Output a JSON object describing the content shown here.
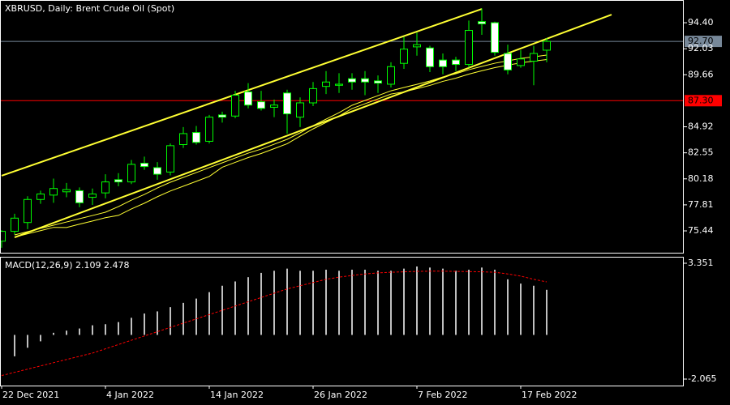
{
  "chart_data": [
    {
      "type": "candlestick",
      "title": "XBRUSD, Daily:  Brent Crude Oil (Spot)",
      "categories": [
        "22 Dec 2021",
        null,
        null,
        null,
        null,
        null,
        null,
        null,
        "4 Jan 2022",
        null,
        null,
        null,
        null,
        null,
        null,
        null,
        "14 Jan 2022",
        null,
        null,
        null,
        null,
        null,
        null,
        null,
        "26 Jan 2022",
        null,
        null,
        null,
        null,
        null,
        null,
        null,
        "7 Feb 2022",
        null,
        null,
        null,
        null,
        null,
        null,
        null,
        "17 Feb 2022",
        null,
        null
      ],
      "open": [
        74.5,
        75.4,
        76.2,
        78.3,
        78.7,
        79.0,
        79.1,
        78.5,
        78.9,
        80.1,
        79.9,
        81.6,
        81.2,
        80.8,
        83.3,
        84.4,
        83.6,
        86.0,
        85.9,
        88.1,
        87.2,
        86.7,
        88.0,
        85.8,
        87.1,
        88.6,
        88.7,
        89.3,
        89.3,
        89.1,
        88.8,
        90.7,
        92.2,
        92.1,
        91.0,
        91.0,
        90.6,
        94.5,
        94.4,
        91.6,
        90.5,
        90.9,
        91.9
      ],
      "high": [
        75.5,
        77.0,
        78.6,
        79.1,
        80.2,
        79.8,
        79.4,
        79.3,
        80.6,
        80.7,
        81.9,
        82.2,
        81.7,
        83.4,
        84.9,
        85.0,
        86.0,
        86.3,
        88.2,
        88.9,
        88.2,
        87.4,
        88.3,
        87.6,
        89.0,
        90.0,
        89.8,
        89.8,
        90.0,
        89.6,
        90.8,
        93.1,
        93.5,
        92.3,
        91.6,
        91.3,
        94.6,
        95.7,
        94.5,
        92.4,
        91.9,
        92.3,
        93.0
      ],
      "low": [
        73.9,
        75.1,
        75.6,
        77.9,
        78.0,
        78.5,
        77.6,
        77.8,
        78.4,
        79.5,
        79.7,
        81.0,
        80.1,
        80.5,
        83.0,
        83.3,
        83.4,
        85.3,
        85.7,
        86.6,
        86.4,
        85.8,
        84.3,
        84.9,
        86.8,
        87.9,
        88.0,
        88.3,
        87.8,
        88.0,
        88.5,
        90.2,
        91.4,
        89.9,
        89.7,
        90.0,
        90.3,
        93.3,
        91.4,
        89.7,
        90.3,
        88.7,
        90.8
      ],
      "close": [
        75.4,
        76.6,
        78.3,
        78.8,
        79.3,
        79.2,
        78.0,
        78.8,
        79.9,
        79.9,
        81.5,
        81.3,
        80.6,
        83.2,
        84.3,
        83.5,
        85.8,
        85.8,
        87.8,
        86.9,
        86.6,
        86.9,
        86.1,
        87.1,
        88.4,
        89.0,
        88.8,
        89.0,
        89.0,
        88.9,
        90.4,
        92.0,
        92.4,
        90.4,
        90.4,
        90.6,
        93.7,
        94.3,
        91.7,
        90.1,
        91.1,
        91.6,
        92.7
      ],
      "colors": {
        "up_body": "#000000",
        "down_body": "#ffffff",
        "outline": "#00ff00"
      },
      "series": [
        {
          "color": "#ffff33",
          "values": [
            null,
            75.07,
            75.37,
            75.66,
            75.96,
            76.25,
            76.55,
            76.84,
            77.14,
            77.65,
            78.24,
            78.76,
            79.35,
            79.87,
            80.31,
            80.75,
            81.2,
            81.64,
            82.08,
            82.52,
            82.89,
            83.33,
            83.78,
            84.37,
            85.03,
            85.62,
            86.21,
            86.88,
            87.32,
            87.76,
            88.2,
            88.5,
            88.79,
            89.09,
            89.46,
            89.75,
            90.12,
            90.42,
            90.71,
            90.93,
            91.15,
            91.3,
            91.45
          ]
        },
        {
          "color": "#ffff33",
          "values": [
            null,
            74.87,
            75.17,
            75.46,
            75.76,
            75.75,
            76.05,
            76.34,
            76.64,
            76.85,
            77.44,
            77.96,
            78.55,
            79.07,
            79.51,
            79.95,
            80.4,
            81.24,
            81.68,
            82.12,
            82.49,
            82.93,
            83.38,
            84.07,
            84.73,
            85.32,
            85.91,
            86.58,
            87.02,
            87.46,
            87.9,
            88.1,
            88.39,
            88.69,
            89.06,
            89.35,
            89.72,
            90.02,
            90.31,
            90.53,
            90.75,
            90.9,
            91.05
          ]
        }
      ],
      "trend_lines": [
        {
          "color": "#ffff33",
          "x": [
            0,
            37
          ],
          "y": [
            80.46,
            95.65
          ]
        },
        {
          "color": "#ffff33",
          "x": [
            1,
            47
          ],
          "y": [
            74.85,
            95.14
          ]
        }
      ],
      "levels": [
        {
          "value": 92.7,
          "label": "92.70",
          "color": "#778899"
        },
        {
          "value": 87.3,
          "label": "87.30",
          "color": "#ff0000"
        }
      ],
      "ylim": [
        73.45,
        96.47
      ],
      "yticks": [
        75.44,
        77.81,
        80.18,
        82.55,
        84.92,
        {
          "value": 89.66,
          "label": "89.66"
        },
        92.03,
        {
          "value": 94.4,
          "label": "94.40"
        }
      ]
    },
    {
      "type": "macd",
      "title": "MACD(12,26,9) 2.109 2.478",
      "values": [
        null,
        -1.0,
        -0.6,
        -0.3,
        0.1,
        0.2,
        0.3,
        0.45,
        0.5,
        0.6,
        0.8,
        1.0,
        1.1,
        1.3,
        1.5,
        1.7,
        2.0,
        2.3,
        2.5,
        2.7,
        2.9,
        3.0,
        3.1,
        3.0,
        3.0,
        3.05,
        3.0,
        3.05,
        3.05,
        3.0,
        3.0,
        3.1,
        3.2,
        3.15,
        3.1,
        3.0,
        3.05,
        3.15,
        3.05,
        2.6,
        2.4,
        2.3,
        2.109
      ],
      "color": "#c0c0c0",
      "signal": {
        "color": "#ff0000",
        "values": [
          -1.9,
          -1.75,
          -1.6,
          -1.45,
          -1.3,
          -1.15,
          -1.0,
          -0.85,
          -0.65,
          -0.45,
          -0.25,
          -0.05,
          0.15,
          0.35,
          0.55,
          0.75,
          0.95,
          1.15,
          1.35,
          1.55,
          1.75,
          1.95,
          2.15,
          2.3,
          2.45,
          2.6,
          2.7,
          2.78,
          2.85,
          2.9,
          2.93,
          2.95,
          2.97,
          2.98,
          2.98,
          2.97,
          2.96,
          2.95,
          2.93,
          2.85,
          2.75,
          2.6,
          2.478
        ]
      },
      "ylim": [
        -2.368,
        3.616
      ],
      "yticks": [
        -2.065,
        3.351
      ]
    }
  ]
}
